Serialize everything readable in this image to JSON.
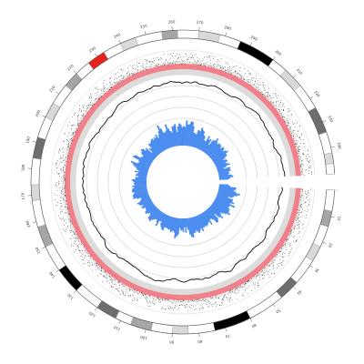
{
  "chart_data": {
    "type": "circos",
    "title": "",
    "gap_side": "right",
    "ideogram": {
      "bands": [
        {
          "start": 0,
          "end": 8,
          "stain": "gneg"
        },
        {
          "start": 8,
          "end": 14,
          "stain": "gpos50"
        },
        {
          "start": 14,
          "end": 22,
          "stain": "gneg"
        },
        {
          "start": 22,
          "end": 28,
          "stain": "gpos25"
        },
        {
          "start": 28,
          "end": 38,
          "stain": "gneg"
        },
        {
          "start": 38,
          "end": 46,
          "stain": "gpos75"
        },
        {
          "start": 46,
          "end": 60,
          "stain": "gneg"
        },
        {
          "start": 60,
          "end": 74,
          "stain": "gpos100"
        },
        {
          "start": 74,
          "end": 84,
          "stain": "gneg"
        },
        {
          "start": 84,
          "end": 90,
          "stain": "gpos25"
        },
        {
          "start": 90,
          "end": 98,
          "stain": "gneg"
        },
        {
          "start": 98,
          "end": 106,
          "stain": "gpos50"
        },
        {
          "start": 106,
          "end": 112,
          "stain": "gneg"
        },
        {
          "start": 112,
          "end": 120,
          "stain": "gpos75"
        },
        {
          "start": 120,
          "end": 130,
          "stain": "gneg"
        },
        {
          "start": 130,
          "end": 140,
          "stain": "gpos100"
        },
        {
          "start": 140,
          "end": 150,
          "stain": "gneg"
        },
        {
          "start": 150,
          "end": 158,
          "stain": "gpos50"
        },
        {
          "start": 158,
          "end": 168,
          "stain": "gneg"
        },
        {
          "start": 168,
          "end": 174,
          "stain": "gpos25"
        },
        {
          "start": 174,
          "end": 184,
          "stain": "gneg"
        },
        {
          "start": 184,
          "end": 192,
          "stain": "gpos75"
        },
        {
          "start": 192,
          "end": 200,
          "stain": "gneg"
        },
        {
          "start": 200,
          "end": 206,
          "stain": "gpos25"
        },
        {
          "start": 206,
          "end": 214,
          "stain": "gneg"
        },
        {
          "start": 214,
          "end": 220,
          "stain": "gpos50"
        },
        {
          "start": 220,
          "end": 226,
          "stain": "gneg"
        },
        {
          "start": 226,
          "end": 233,
          "stain": "acen"
        },
        {
          "start": 233,
          "end": 240,
          "stain": "gneg"
        },
        {
          "start": 240,
          "end": 246,
          "stain": "gpos25"
        },
        {
          "start": 246,
          "end": 256,
          "stain": "gneg"
        },
        {
          "start": 256,
          "end": 262,
          "stain": "gpos50"
        },
        {
          "start": 262,
          "end": 270,
          "stain": "gneg"
        },
        {
          "start": 270,
          "end": 278,
          "stain": "gpos25"
        },
        {
          "start": 278,
          "end": 286,
          "stain": "gneg"
        },
        {
          "start": 286,
          "end": 300,
          "stain": "gpos100"
        },
        {
          "start": 300,
          "end": 306,
          "stain": "gneg"
        },
        {
          "start": 306,
          "end": 314,
          "stain": "gpos25"
        },
        {
          "start": 314,
          "end": 324,
          "stain": "gneg"
        },
        {
          "start": 324,
          "end": 334,
          "stain": "gpos75"
        },
        {
          "start": 334,
          "end": 342,
          "stain": "gneg"
        },
        {
          "start": 342,
          "end": 346,
          "stain": "gpos25"
        },
        {
          "start": 346,
          "end": 350,
          "stain": "gneg"
        }
      ],
      "stain_colors": {
        "gneg": "#ffffff",
        "gpos25": "#d9d9d9",
        "gpos50": "#a6a6a6",
        "gpos75": "#6e6e6e",
        "gpos100": "#000000",
        "acen": "#e8201e"
      }
    },
    "tick_labels": [
      "",
      "10",
      "20",
      "30",
      "40",
      "50",
      "60",
      "70",
      "80",
      "90",
      "100",
      "110",
      "120",
      "130",
      "140",
      "150",
      "160",
      "170",
      "180",
      "190",
      "200",
      "210",
      "220",
      "230",
      "240",
      "250",
      "260",
      "270",
      "280",
      "290",
      "300",
      "310",
      "320",
      "330",
      "340"
    ],
    "tick_step": 10,
    "axis_length": 350,
    "tracks": {
      "scatter_color": "#111111",
      "red_band_color": "#f0808a",
      "gray_band_color": "#dcdcdc",
      "line_color": "#111111",
      "ring_color": "#cfcfcf",
      "histogram_color": "#4a8cf0",
      "ring_count": 5
    }
  }
}
